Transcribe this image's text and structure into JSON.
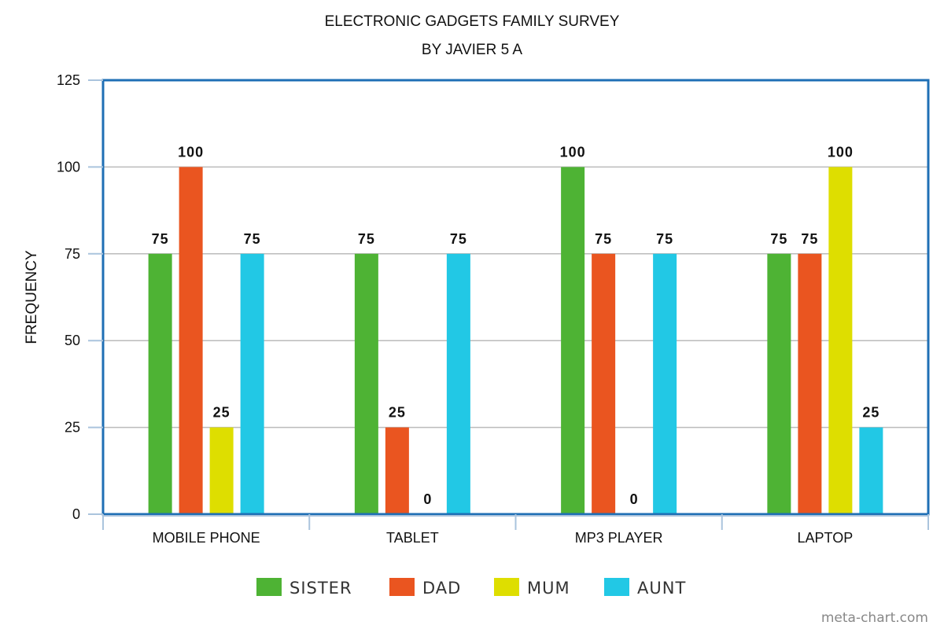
{
  "chart_data": {
    "type": "bar",
    "title": "ELECTRONIC GADGETS FAMILY SURVEY",
    "subtitle": "BY JAVIER 5 A",
    "xlabel": "",
    "ylabel": "FREQUENCY",
    "ylim": [
      0,
      125
    ],
    "yticks": [
      "0",
      "25",
      "50",
      "75",
      "100",
      "125"
    ],
    "grid": true,
    "legend_position": "bottom",
    "categories": [
      "MOBILE PHONE",
      "TABLET",
      "MP3 PLAYER",
      "LAPTOP"
    ],
    "series": [
      {
        "name": "SISTER",
        "color": "#4eb334",
        "values": [
          75,
          75,
          100,
          75
        ],
        "labels": [
          "75",
          "75",
          "100",
          "75"
        ]
      },
      {
        "name": "DAD",
        "color": "#ea5520",
        "values": [
          100,
          25,
          75,
          75
        ],
        "labels": [
          "100",
          "25",
          "75",
          "75"
        ]
      },
      {
        "name": "MUM",
        "color": "#dede00",
        "values": [
          25,
          0,
          0,
          100
        ],
        "labels": [
          "25",
          "0",
          "0",
          "100"
        ]
      },
      {
        "name": "AUNT",
        "color": "#22c8e5",
        "values": [
          75,
          75,
          75,
          25
        ],
        "labels": [
          "75",
          "75",
          "75",
          "25"
        ]
      }
    ]
  },
  "credit": "meta-chart.com",
  "colors": {
    "frame": "#1f6fb5",
    "grid": "#bbbbbb",
    "axis_ticks": "#aac4dd"
  }
}
